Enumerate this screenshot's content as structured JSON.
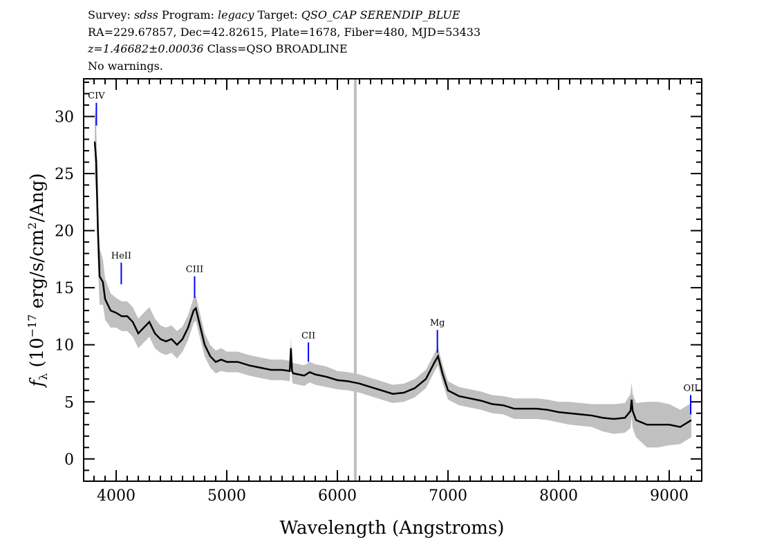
{
  "header": {
    "line1": {
      "survey_label": "Survey: ",
      "survey": "sdss",
      "program_label": " Program: ",
      "program": "legacy",
      "target_label": " Target: ",
      "target": "QSO_CAP SERENDIP_BLUE"
    },
    "line2": "RA=229.67857, Dec=42.82615, Plate=1678, Fiber=480, MJD=53433",
    "line3": {
      "z": "z=1.46682±0.00036",
      "cls": " Class=QSO BROADLINE"
    },
    "line4": "No warnings."
  },
  "chart_data": {
    "type": "line",
    "title": "",
    "xlabel": "Wavelength (Angstroms)",
    "ylabel": {
      "f": "f",
      "sub": "λ",
      "pre": " (10",
      "exp": "−17",
      "mid": " erg/s/cm",
      "exp2": "2",
      "post": "/Ang)"
    },
    "xlim": [
      3706,
      9294
    ],
    "ylim": [
      -1.95,
      33.3
    ],
    "xticks": [
      4000,
      5000,
      6000,
      7000,
      8000,
      9000
    ],
    "xtick_labels": [
      "4000",
      "5000",
      "6000",
      "7000",
      "8000",
      "9000"
    ],
    "yticks": [
      0,
      5,
      10,
      15,
      20,
      25,
      30
    ],
    "ytick_labels": [
      "0",
      "5",
      "10",
      "15",
      "20",
      "25",
      "30"
    ],
    "grid": false,
    "series": [
      {
        "color": "#000000",
        "x": [
          3806,
          3820,
          3835,
          3850,
          3880,
          3900,
          3950,
          4000,
          4050,
          4100,
          4150,
          4200,
          4250,
          4300,
          4350,
          4400,
          4450,
          4500,
          4550,
          4600,
          4650,
          4700,
          4720,
          4750,
          4800,
          4850,
          4900,
          4950,
          5000,
          5100,
          5200,
          5300,
          5400,
          5500,
          5570,
          5580,
          5590,
          5600,
          5700,
          5750,
          5800,
          5900,
          6000,
          6100,
          6200,
          6300,
          6400,
          6500,
          6600,
          6700,
          6800,
          6880,
          6910,
          6950,
          7000,
          7100,
          7200,
          7300,
          7400,
          7500,
          7600,
          7700,
          7800,
          7900,
          8000,
          8100,
          8200,
          8300,
          8400,
          8500,
          8600,
          8650,
          8660,
          8670,
          8700,
          8800,
          8900,
          9000,
          9100,
          9200
        ],
        "y": [
          27.8,
          26,
          20,
          16,
          15.5,
          14,
          13,
          12.8,
          12.5,
          12.5,
          12,
          11,
          11.5,
          12,
          11,
          10.5,
          10.3,
          10.5,
          10,
          10.5,
          11.5,
          13,
          13.2,
          12,
          10,
          9,
          8.5,
          8.7,
          8.5,
          8.5,
          8.2,
          8,
          7.8,
          7.8,
          7.7,
          9.7,
          7.7,
          7.5,
          7.3,
          7.6,
          7.4,
          7.2,
          6.9,
          6.8,
          6.6,
          6.3,
          6,
          5.7,
          5.8,
          6.2,
          7,
          8.5,
          9,
          7.5,
          6,
          5.5,
          5.3,
          5.1,
          4.8,
          4.7,
          4.4,
          4.4,
          4.4,
          4.3,
          4.1,
          4,
          3.9,
          3.8,
          3.6,
          3.5,
          3.6,
          4.2,
          5.2,
          4.2,
          3.4,
          3,
          3,
          3,
          2.8,
          3.4
        ]
      }
    ],
    "noise_band": {
      "color": "#c0c0c0",
      "spread": [
        3,
        3,
        3,
        2.5,
        2,
        1.8,
        1.5,
        1.3,
        1.3,
        1.3,
        1.3,
        1.3,
        1.3,
        1.3,
        1.3,
        1.2,
        1.2,
        1.2,
        1.2,
        1.1,
        1.1,
        1.1,
        1.1,
        1.1,
        1.0,
        1.0,
        1.0,
        1.0,
        0.9,
        0.9,
        0.9,
        0.9,
        0.9,
        0.9,
        0.9,
        0.9,
        0.9,
        0.9,
        0.9,
        0.9,
        0.9,
        0.9,
        0.8,
        0.8,
        0.8,
        0.8,
        0.8,
        0.8,
        0.8,
        0.8,
        0.8,
        0.8,
        0.8,
        0.8,
        0.8,
        0.8,
        0.8,
        0.8,
        0.8,
        0.8,
        0.9,
        0.9,
        0.9,
        0.9,
        0.9,
        1,
        1,
        1,
        1.2,
        1.3,
        1.3,
        1.5,
        1.5,
        1.5,
        1.5,
        2,
        2,
        1.8,
        1.5,
        1.5
      ]
    },
    "masked_wavelength": 6162,
    "line_color": "#0000ff",
    "lines": [
      {
        "name": "CIV",
        "wavelength": 3821,
        "top": 31.2,
        "bottom": 29.2
      },
      {
        "name": "HeII",
        "wavelength": 4046,
        "top": 17.2,
        "bottom": 15.3
      },
      {
        "name": "CIII",
        "wavelength": 4709,
        "top": 16,
        "bottom": 14.1
      },
      {
        "name": "CII",
        "wavelength": 5738,
        "top": 10.2,
        "bottom": 8.5
      },
      {
        "name": "Mg",
        "wavelength": 6904,
        "top": 11.3,
        "bottom": 9.3
      },
      {
        "name": "OII",
        "wavelength": 9194,
        "top": 5.6,
        "bottom": 3.9
      }
    ]
  }
}
